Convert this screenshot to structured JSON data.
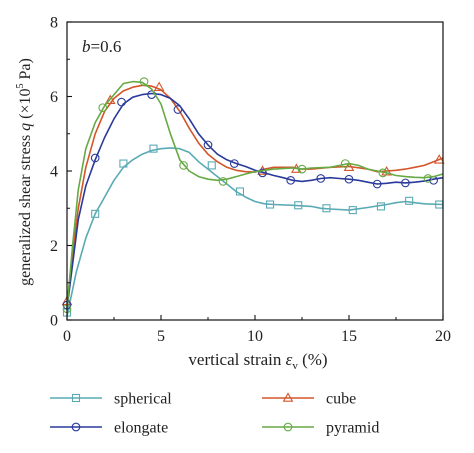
{
  "chart_data": {
    "type": "line",
    "annotation": {
      "symbol": "b",
      "text": "=0.6"
    },
    "xlabel": {
      "main": "vertical strain ",
      "symbol": "ε",
      "sub": "v",
      "unit": " (%)"
    },
    "ylabel": {
      "main": "generalized shear stress ",
      "symbol": "q",
      "unit_open": " (×10",
      "unit_exp": "5",
      "unit_close": " Pa)"
    },
    "xlim": [
      0,
      20
    ],
    "ylim": [
      0,
      8
    ],
    "xticks": [
      "0",
      "5",
      "10",
      "15",
      "20"
    ],
    "yticks": [
      "0",
      "2",
      "4",
      "6",
      "8"
    ],
    "grid": false,
    "legend_position": "bottom",
    "series": [
      {
        "name": "spherical",
        "color": "#5aaab4",
        "marker": "square",
        "curve": [
          [
            0,
            0.1
          ],
          [
            0.5,
            1.3
          ],
          [
            1,
            2.2
          ],
          [
            1.5,
            2.85
          ],
          [
            2,
            3.3
          ],
          [
            2.5,
            3.75
          ],
          [
            3,
            4.1
          ],
          [
            3.5,
            4.3
          ],
          [
            4,
            4.45
          ],
          [
            4.5,
            4.55
          ],
          [
            5,
            4.6
          ],
          [
            5.5,
            4.62
          ],
          [
            6,
            4.6
          ],
          [
            6.5,
            4.5
          ],
          [
            7,
            4.25
          ],
          [
            7.5,
            4.05
          ],
          [
            8,
            3.85
          ],
          [
            8.5,
            3.65
          ],
          [
            9,
            3.45
          ],
          [
            9.5,
            3.3
          ],
          [
            10,
            3.18
          ],
          [
            10.5,
            3.12
          ],
          [
            11,
            3.1
          ],
          [
            12,
            3.08
          ],
          [
            13,
            3.05
          ],
          [
            13.5,
            3.0
          ],
          [
            14,
            2.98
          ],
          [
            15,
            2.95
          ],
          [
            16,
            3.02
          ],
          [
            17,
            3.1
          ],
          [
            17.5,
            3.15
          ],
          [
            18,
            3.18
          ],
          [
            18.5,
            3.15
          ],
          [
            19,
            3.12
          ],
          [
            20,
            3.1
          ]
        ],
        "markers": [
          [
            0,
            0.2
          ],
          [
            1.5,
            2.85
          ],
          [
            3,
            4.2
          ],
          [
            4.6,
            4.6
          ],
          [
            7.7,
            4.15
          ],
          [
            9.2,
            3.45
          ],
          [
            10.8,
            3.1
          ],
          [
            12.3,
            3.08
          ],
          [
            13.8,
            3.0
          ],
          [
            15.2,
            2.95
          ],
          [
            16.7,
            3.05
          ],
          [
            18.2,
            3.2
          ],
          [
            19.8,
            3.1
          ]
        ]
      },
      {
        "name": "cube",
        "color": "#d4552a",
        "marker": "triangle",
        "curve": [
          [
            0,
            0.4
          ],
          [
            0.3,
            1.8
          ],
          [
            0.6,
            3.0
          ],
          [
            1,
            4.1
          ],
          [
            1.5,
            5.0
          ],
          [
            2,
            5.6
          ],
          [
            2.5,
            5.95
          ],
          [
            3,
            6.15
          ],
          [
            3.5,
            6.25
          ],
          [
            4,
            6.3
          ],
          [
            4.5,
            6.28
          ],
          [
            5,
            6.18
          ],
          [
            5.5,
            5.95
          ],
          [
            6,
            5.6
          ],
          [
            6.5,
            5.15
          ],
          [
            7,
            4.75
          ],
          [
            7.5,
            4.45
          ],
          [
            8,
            4.25
          ],
          [
            8.5,
            4.1
          ],
          [
            9,
            4.02
          ],
          [
            9.5,
            3.98
          ],
          [
            10,
            3.97
          ],
          [
            10.5,
            4.05
          ],
          [
            11,
            4.1
          ],
          [
            12,
            4.1
          ],
          [
            12.5,
            4.05
          ],
          [
            13,
            4.05
          ],
          [
            14,
            4.1
          ],
          [
            15,
            4.12
          ],
          [
            16,
            4.05
          ],
          [
            16.5,
            3.98
          ],
          [
            17,
            4.0
          ],
          [
            17.5,
            4.02
          ],
          [
            18,
            4.05
          ],
          [
            18.5,
            4.1
          ],
          [
            19,
            4.15
          ],
          [
            19.5,
            4.25
          ],
          [
            20,
            4.35
          ]
        ],
        "markers": [
          [
            0,
            0.5
          ],
          [
            2.3,
            5.9
          ],
          [
            4.9,
            6.25
          ],
          [
            10.4,
            4.0
          ],
          [
            12.2,
            4.05
          ],
          [
            15.0,
            4.1
          ],
          [
            17.0,
            3.98
          ],
          [
            19.8,
            4.3
          ]
        ]
      },
      {
        "name": "elongate",
        "color": "#2a3a9a",
        "marker": "circle",
        "curve": [
          [
            0,
            0.3
          ],
          [
            0.3,
            1.5
          ],
          [
            0.6,
            2.7
          ],
          [
            1,
            3.6
          ],
          [
            1.5,
            4.3
          ],
          [
            2,
            4.9
          ],
          [
            2.5,
            5.4
          ],
          [
            3,
            5.8
          ],
          [
            3.5,
            5.98
          ],
          [
            4,
            6.05
          ],
          [
            4.5,
            6.08
          ],
          [
            5,
            6.05
          ],
          [
            5.5,
            5.95
          ],
          [
            6,
            5.75
          ],
          [
            6.5,
            5.4
          ],
          [
            7,
            5.0
          ],
          [
            7.5,
            4.7
          ],
          [
            8,
            4.45
          ],
          [
            8.5,
            4.3
          ],
          [
            9,
            4.2
          ],
          [
            9.5,
            4.12
          ],
          [
            10,
            4.02
          ],
          [
            10.5,
            3.95
          ],
          [
            11,
            3.88
          ],
          [
            11.5,
            3.82
          ],
          [
            12,
            3.75
          ],
          [
            12.5,
            3.72
          ],
          [
            13,
            3.75
          ],
          [
            13.5,
            3.8
          ],
          [
            14,
            3.82
          ],
          [
            14.5,
            3.8
          ],
          [
            15,
            3.78
          ],
          [
            15.5,
            3.75
          ],
          [
            16,
            3.7
          ],
          [
            16.5,
            3.65
          ],
          [
            17,
            3.67
          ],
          [
            17.5,
            3.7
          ],
          [
            18,
            3.68
          ],
          [
            18.5,
            3.7
          ],
          [
            19,
            3.73
          ],
          [
            19.5,
            3.78
          ],
          [
            20,
            3.82
          ]
        ],
        "markers": [
          [
            0,
            0.4
          ],
          [
            1.5,
            4.35
          ],
          [
            2.9,
            5.85
          ],
          [
            4.5,
            6.05
          ],
          [
            5.9,
            5.65
          ],
          [
            7.5,
            4.7
          ],
          [
            8.9,
            4.2
          ],
          [
            10.4,
            3.95
          ],
          [
            11.9,
            3.75
          ],
          [
            13.5,
            3.8
          ],
          [
            15.0,
            3.78
          ],
          [
            16.5,
            3.65
          ],
          [
            18.0,
            3.68
          ],
          [
            19.5,
            3.75
          ]
        ]
      },
      {
        "name": "pyramid",
        "color": "#66aa44",
        "marker": "circle",
        "curve": [
          [
            0,
            0.3
          ],
          [
            0.3,
            2.0
          ],
          [
            0.6,
            3.5
          ],
          [
            1,
            4.6
          ],
          [
            1.5,
            5.3
          ],
          [
            2,
            5.75
          ],
          [
            2.5,
            6.05
          ],
          [
            3,
            6.35
          ],
          [
            3.5,
            6.4
          ],
          [
            4,
            6.38
          ],
          [
            4.5,
            6.2
          ],
          [
            5,
            5.8
          ],
          [
            5.5,
            5.0
          ],
          [
            6,
            4.3
          ],
          [
            6.5,
            4.0
          ],
          [
            7,
            3.85
          ],
          [
            7.5,
            3.78
          ],
          [
            8,
            3.75
          ],
          [
            8.5,
            3.78
          ],
          [
            9,
            3.85
          ],
          [
            9.5,
            3.92
          ],
          [
            10,
            3.98
          ],
          [
            10.5,
            4.02
          ],
          [
            11,
            4.05
          ],
          [
            12,
            4.08
          ],
          [
            12.5,
            4.05
          ],
          [
            13,
            4.08
          ],
          [
            14,
            4.1
          ],
          [
            14.5,
            4.15
          ],
          [
            15,
            4.2
          ],
          [
            15.5,
            4.15
          ],
          [
            16,
            4.05
          ],
          [
            16.5,
            4.0
          ],
          [
            17,
            3.95
          ],
          [
            17.5,
            3.88
          ],
          [
            18,
            3.85
          ],
          [
            18.5,
            3.83
          ],
          [
            19,
            3.82
          ],
          [
            19.5,
            3.85
          ],
          [
            20,
            3.92
          ]
        ],
        "markers": [
          [
            0,
            0.3
          ],
          [
            1.9,
            5.7
          ],
          [
            4.1,
            6.4
          ],
          [
            6.2,
            4.15
          ],
          [
            8.3,
            3.72
          ],
          [
            12.5,
            4.05
          ],
          [
            14.8,
            4.2
          ],
          [
            16.8,
            3.95
          ],
          [
            19.2,
            3.8
          ]
        ]
      }
    ],
    "legend": [
      {
        "series": "spherical",
        "label": "spherical"
      },
      {
        "series": "cube",
        "label": "cube"
      },
      {
        "series": "elongate",
        "label": "elongate"
      },
      {
        "series": "pyramid",
        "label": "pyramid"
      }
    ]
  }
}
